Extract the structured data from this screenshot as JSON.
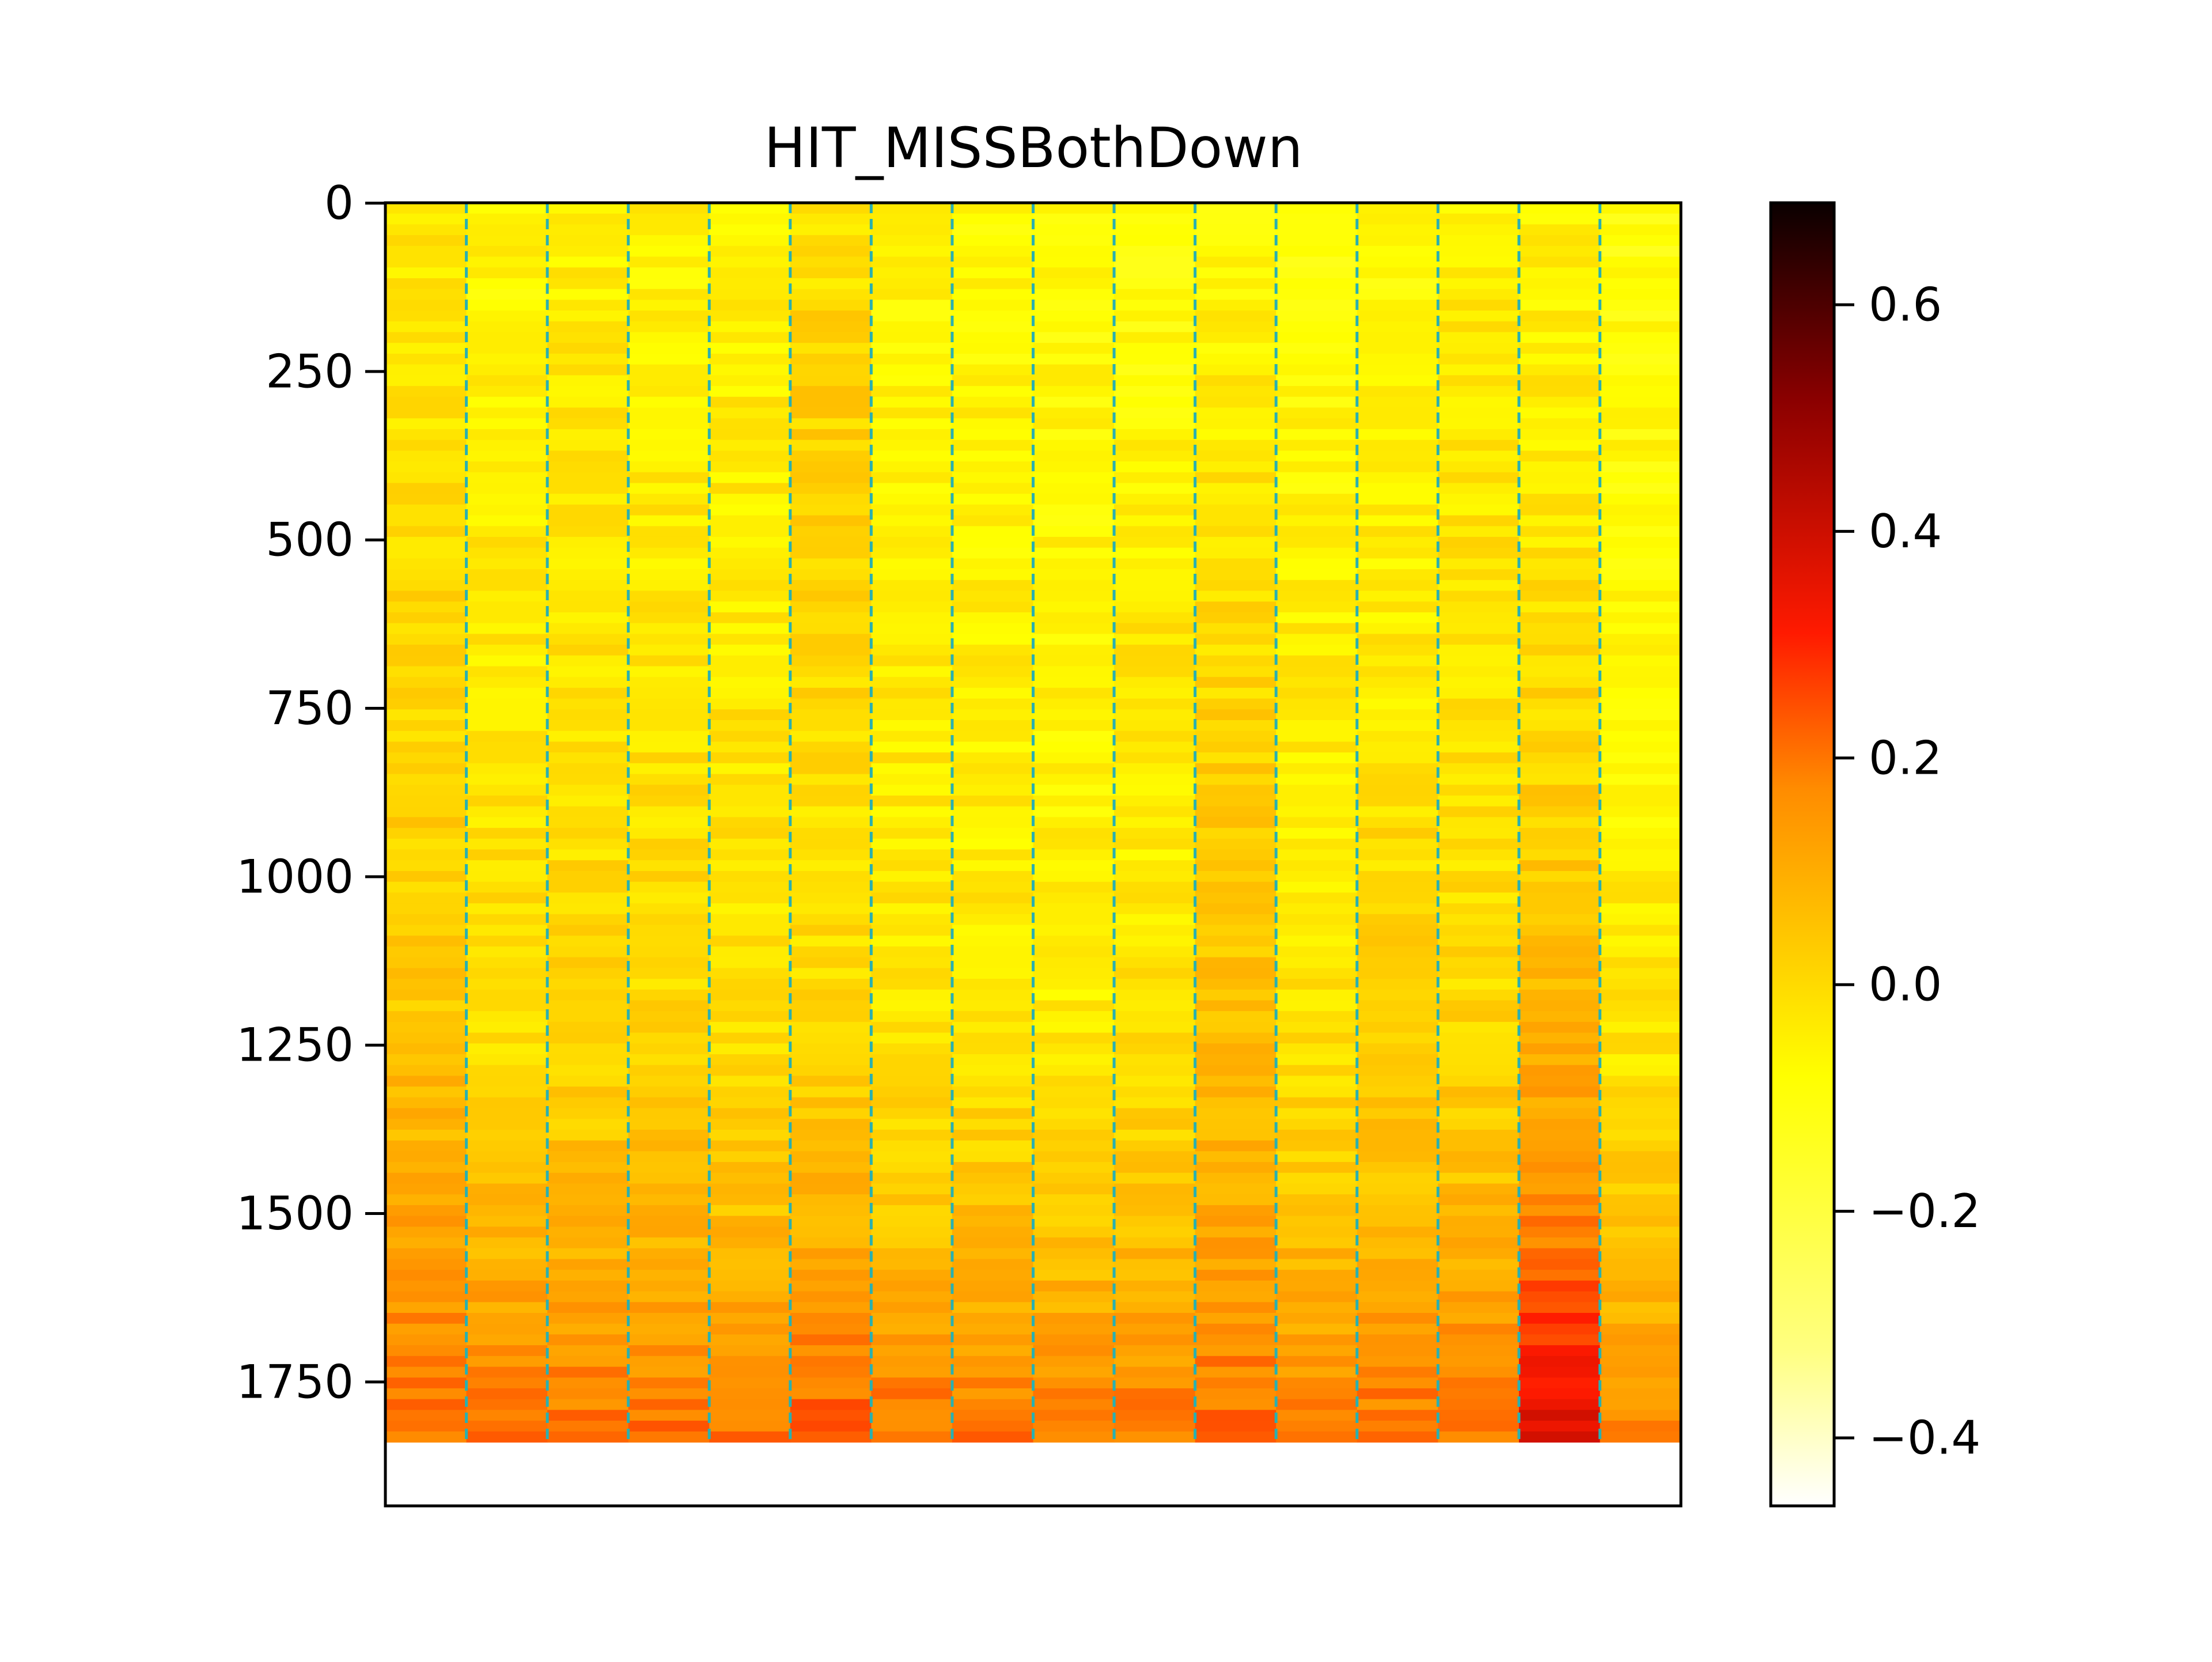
{
  "chart_data": {
    "type": "heatmap",
    "title": "HIT_MISSBothDown",
    "xlabel": "",
    "ylabel": "",
    "x_ticks_visible": false,
    "y_axis": {
      "inverted": true,
      "range": [
        -0.5,
        1934
      ],
      "data_rows_range": [
        0,
        1840
      ],
      "ticks": [
        0,
        250,
        500,
        750,
        1000,
        1250,
        1500,
        1750
      ],
      "tick_labels": [
        "0",
        "250",
        "500",
        "750",
        "1000",
        "1250",
        "1500",
        "1750"
      ]
    },
    "columns": 16,
    "column_dividers": {
      "count": 15,
      "style": "dashed",
      "color": "#2ab0b0"
    },
    "column_means_top_to_bottom": [
      [
        -0.04,
        -0.02,
        0.0,
        0.02,
        0.05,
        0.12,
        0.22
      ],
      [
        -0.07,
        -0.05,
        -0.03,
        -0.02,
        -0.01,
        0.08,
        0.2
      ],
      [
        -0.05,
        -0.03,
        -0.02,
        -0.01,
        0.01,
        0.08,
        0.21
      ],
      [
        -0.06,
        -0.04,
        -0.02,
        -0.01,
        0.01,
        0.08,
        0.21
      ],
      [
        -0.06,
        -0.04,
        -0.03,
        -0.02,
        -0.01,
        0.07,
        0.2
      ],
      [
        -0.02,
        0.02,
        0.0,
        -0.01,
        0.0,
        0.1,
        0.24
      ],
      [
        -0.07,
        -0.05,
        -0.04,
        -0.03,
        -0.02,
        0.06,
        0.22
      ],
      [
        -0.08,
        -0.06,
        -0.05,
        -0.04,
        -0.02,
        0.06,
        0.2
      ],
      [
        -0.09,
        -0.07,
        -0.06,
        -0.05,
        -0.04,
        0.05,
        0.2
      ],
      [
        -0.1,
        -0.07,
        -0.03,
        -0.04,
        -0.02,
        0.06,
        0.2
      ],
      [
        -0.07,
        -0.04,
        0.0,
        0.03,
        0.06,
        0.12,
        0.22
      ],
      [
        -0.09,
        -0.07,
        -0.05,
        -0.04,
        -0.02,
        0.06,
        0.2
      ],
      [
        -0.08,
        -0.06,
        -0.04,
        -0.01,
        0.02,
        0.08,
        0.21
      ],
      [
        -0.05,
        -0.03,
        -0.02,
        -0.01,
        0.01,
        0.08,
        0.21
      ],
      [
        -0.06,
        -0.04,
        -0.01,
        0.03,
        0.08,
        0.18,
        0.4
      ],
      [
        -0.1,
        -0.08,
        -0.07,
        -0.05,
        -0.03,
        0.05,
        0.18
      ]
    ],
    "colormap": "hot_r",
    "colorbar": {
      "range": [
        -0.46,
        0.69
      ],
      "ticks": [
        -0.4,
        -0.2,
        0.0,
        0.2,
        0.4,
        0.6
      ],
      "tick_labels": [
        "−0.4",
        "−0.2",
        "0.0",
        "0.2",
        "0.4",
        "0.6"
      ]
    }
  }
}
